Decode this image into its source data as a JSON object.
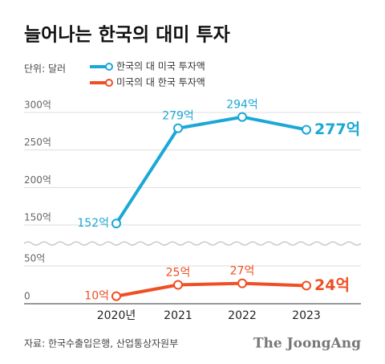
{
  "chart_data": {
    "type": "line",
    "title": "늘어나는 한국의 대미 투자",
    "unit_note": "단위: 달러",
    "source": "자료: 한국수출입은행, 산업통상자원부",
    "brand": "The JoongAng",
    "categories": [
      "2020년",
      "2021",
      "2022",
      "2023"
    ],
    "series": [
      {
        "name": "한국의 대 미국 투자액",
        "color": "#1ba8d6",
        "values": [
          152,
          279,
          294,
          277
        ],
        "value_labels": [
          "152억",
          "279억",
          "294억",
          "277억"
        ]
      },
      {
        "name": "미국의 대 한국 투자액",
        "color": "#f04e23",
        "values": [
          10,
          25,
          27,
          24
        ],
        "value_labels": [
          "10억",
          "25억",
          "27억",
          "24억"
        ]
      }
    ],
    "ylim": [
      0,
      300
    ],
    "ybreak": [
      50,
      150
    ],
    "yticks": [
      0,
      {
        "value": 50,
        "label": "50억"
      },
      {
        "value": 150,
        "label": "150억"
      },
      {
        "value": 200,
        "label": "200억"
      },
      {
        "value": 250,
        "label": "250억"
      },
      {
        "value": 300,
        "label": "300억"
      }
    ],
    "grid": true
  }
}
